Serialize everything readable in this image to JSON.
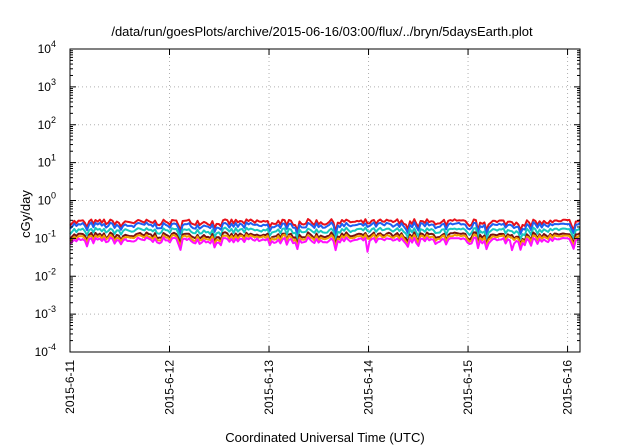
{
  "chart_data": {
    "type": "line",
    "title": "/data/run/goesPlots/archive/2015-06-16/03:00/flux/../bryn/5daysEarth.plot",
    "xlabel": "Coordinated Universal Time (UTC)",
    "ylabel": "cGy/day",
    "yscale": "log",
    "ylim": [
      0.0001,
      10000
    ],
    "xlim": [
      "2015-06-11T00:00",
      "2015-06-16T03:00"
    ],
    "x_ticks": [
      "2015-6-11",
      "2015-6-12",
      "2015-6-13",
      "2015-6-14",
      "2015-6-15",
      "2015-6-16"
    ],
    "y_ticks": [
      {
        "base": "10",
        "exp": "-4"
      },
      {
        "base": "10",
        "exp": "-3"
      },
      {
        "base": "10",
        "exp": "-2"
      },
      {
        "base": "10",
        "exp": "-1"
      },
      {
        "base": "10",
        "exp": "0"
      },
      {
        "base": "10",
        "exp": "1"
      },
      {
        "base": "10",
        "exp": "2"
      },
      {
        "base": "10",
        "exp": "3"
      },
      {
        "base": "10",
        "exp": "4"
      }
    ],
    "grid": true,
    "series": [
      {
        "color": "#e8101a",
        "level": 0.27
      },
      {
        "color": "#1e5ff0",
        "level": 0.22
      },
      {
        "color": "#18c8c0",
        "level": 0.16
      },
      {
        "color": "#7a1010",
        "level": 0.12
      },
      {
        "color": "#f0a000",
        "level": 0.105
      },
      {
        "color": "#ff10ff",
        "level": 0.088
      }
    ]
  }
}
